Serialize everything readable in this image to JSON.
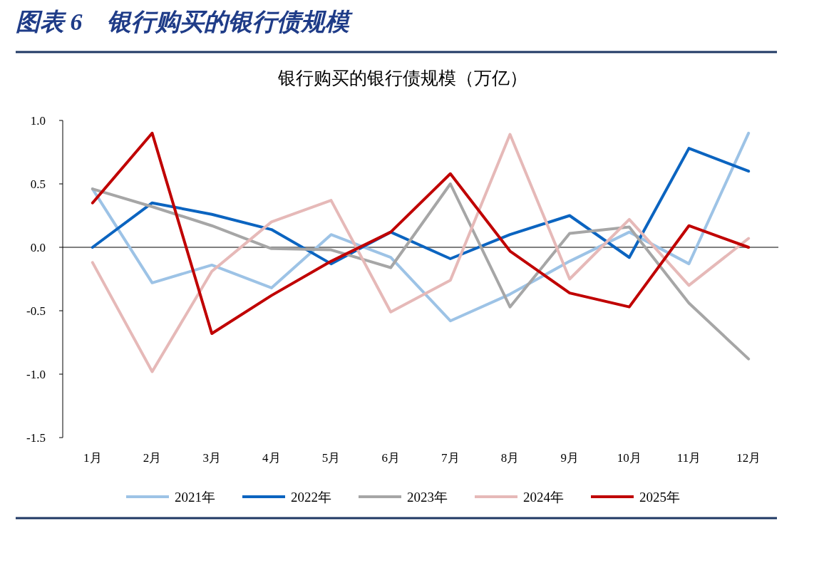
{
  "chart_data": {
    "type": "line",
    "title": "图表 6　银行购买的银行债规模",
    "subtitle": "银行购买的银行债规模（万亿）",
    "categories": [
      "1月",
      "2月",
      "3月",
      "4月",
      "5月",
      "6月",
      "7月",
      "8月",
      "9月",
      "10月",
      "11月",
      "12月"
    ],
    "series": [
      {
        "name": "2021年",
        "color": "#9dc3e6",
        "values": [
          0.46,
          -0.28,
          -0.14,
          -0.32,
          0.1,
          -0.08,
          -0.58,
          -0.37,
          -0.11,
          0.12,
          -0.13,
          0.9
        ]
      },
      {
        "name": "2022年",
        "color": "#0b64c0",
        "values": [
          0.0,
          0.35,
          0.26,
          0.14,
          -0.13,
          0.12,
          -0.09,
          0.1,
          0.25,
          -0.08,
          0.78,
          0.6
        ]
      },
      {
        "name": "2023年",
        "color": "#a6a6a6",
        "values": [
          0.46,
          0.32,
          0.17,
          -0.01,
          -0.02,
          -0.16,
          0.5,
          -0.47,
          0.11,
          0.16,
          -0.44,
          -0.88
        ]
      },
      {
        "name": "2024年",
        "color": "#e6b9b8",
        "values": [
          -0.12,
          -0.98,
          -0.19,
          0.2,
          0.37,
          -0.51,
          -0.26,
          0.89,
          -0.25,
          0.22,
          -0.3,
          0.07
        ]
      },
      {
        "name": "2025年",
        "color": "#c00000",
        "values": [
          0.35,
          0.9,
          -0.68,
          -0.38,
          -0.11,
          0.12,
          0.58,
          -0.03,
          -0.36,
          -0.47,
          0.17,
          0.0
        ]
      }
    ],
    "ylim": [
      -1.5,
      1.0
    ],
    "yticks": [
      {
        "value": 1.0,
        "label": "1.0"
      },
      {
        "value": 0.5,
        "label": "0.5"
      },
      {
        "value": 0.0,
        "label": "0.0"
      },
      {
        "value": -0.5,
        "label": "-0.5"
      },
      {
        "value": -1.0,
        "label": "-1.0"
      },
      {
        "value": -1.5,
        "label": "-1.5"
      }
    ],
    "ref_lines": [
      {
        "axis": "y",
        "value": 0,
        "color": "#000000"
      }
    ],
    "legend": "bottom",
    "marker": "none",
    "line_style": "solid"
  }
}
